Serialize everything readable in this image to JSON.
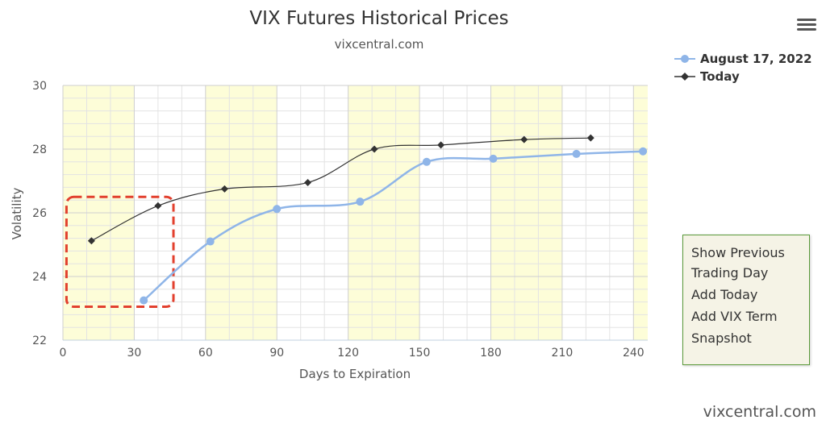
{
  "title": "VIX Futures Historical Prices",
  "subtitle": "vixcentral.com",
  "watermark": "vixcentral.com",
  "menu_icon": "hamburger-menu-icon",
  "context_menu": {
    "items": [
      "Show Previous Trading Day",
      "Add Today",
      "Add VIX Term",
      "Snapshot"
    ]
  },
  "chart_data": {
    "type": "line",
    "xlabel": "Days to Expiration",
    "ylabel": "Volatility",
    "xlim": [
      0,
      246
    ],
    "ylim": [
      22,
      30
    ],
    "x_ticks": [
      0,
      30,
      60,
      90,
      120,
      150,
      180,
      210,
      240
    ],
    "y_ticks": [
      22,
      24,
      26,
      28,
      30
    ],
    "grid": true,
    "legend_position": "top-right",
    "bands": [
      [
        0,
        30
      ],
      [
        60,
        90
      ],
      [
        120,
        150
      ],
      [
        180,
        210
      ],
      [
        240,
        246
      ]
    ],
    "colors": {
      "band": "#fdfdd8",
      "series_1": "#8fb5e8",
      "series_2": "#333333",
      "highlight": "#e2402e"
    },
    "series": [
      {
        "name": "August 17, 2022",
        "marker": "circle",
        "x": [
          34,
          62,
          90,
          125,
          153,
          181,
          216,
          244
        ],
        "values": [
          23.25,
          25.1,
          26.12,
          26.35,
          27.6,
          27.7,
          27.85,
          27.93
        ]
      },
      {
        "name": "Today",
        "marker": "diamond",
        "x": [
          12,
          40,
          68,
          103,
          131,
          159,
          194,
          222
        ],
        "values": [
          25.12,
          26.22,
          26.75,
          26.95,
          28.0,
          28.13,
          28.3,
          28.35
        ]
      }
    ]
  }
}
